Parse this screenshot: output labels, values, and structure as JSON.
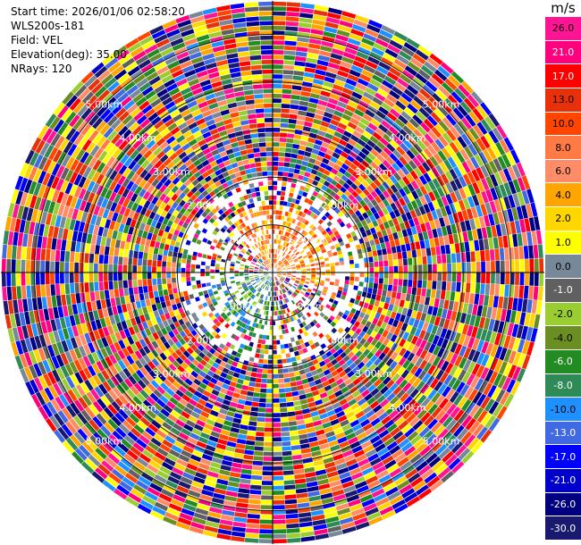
{
  "info": {
    "start_time": "Start time: 2026/01/06 02:58:20",
    "station": "WLS200s-181",
    "field": "Field: VEL",
    "elevation": "Elevation(deg): 35.00",
    "nrays": "NRays: 120"
  },
  "chart_data": {
    "type": "heatmap",
    "projection": "polar-ppi",
    "field": "VEL",
    "units": "m/s",
    "n_rays": 120,
    "elevation_deg": 35.0,
    "range_rings_km": [
      1.0,
      2.0,
      3.0,
      4.0,
      5.0
    ],
    "ring_labels": [
      "1.00km",
      "2.00km",
      "3.00km",
      "4.00km",
      "5.00km"
    ],
    "max_range_km": 5.7,
    "colorbar": {
      "label": "m/s",
      "ticks": [
        "26.0",
        "21.0",
        "17.0",
        "13.0",
        "10.0",
        "8.0",
        "6.0",
        "4.0",
        "2.0",
        "1.0",
        "0.0",
        "-1.0",
        "-2.0",
        "-4.0",
        "-6.0",
        "-8.0",
        "-10.0",
        "-13.0",
        "-17.0",
        "-21.0",
        "-26.0",
        "-30.0"
      ],
      "colors": [
        "#ff1493",
        "#ff007f",
        "#ff0000",
        "#e8300a",
        "#ff4500",
        "#ff7a45",
        "#ff8c69",
        "#ffa500",
        "#ffd700",
        "#ffff00",
        "#778899",
        "#606060",
        "#9acd32",
        "#6b8e23",
        "#228b22",
        "#2e8b57",
        "#1e90ff",
        "#4169e1",
        "#0000ff",
        "#0000cd",
        "#000080",
        "#191970"
      ]
    }
  }
}
